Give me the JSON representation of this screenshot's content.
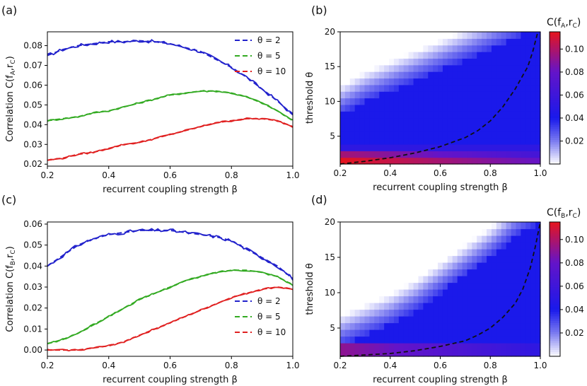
{
  "chart_data": [
    {
      "panel_label": "(a)",
      "type": "line",
      "xlabel": "recurrent coupling strength β",
      "ylabel": "Correlation C(f",
      "ylabel_sub1": "A",
      "ylabel_sub2": "C",
      "xlim": [
        0.2,
        1.0
      ],
      "ylim": [
        0.019,
        0.087
      ],
      "xticks": [
        "0.2",
        "0.4",
        "0.6",
        "0.8",
        "1.0"
      ],
      "yticks": [
        "0.02",
        "0.03",
        "0.04",
        "0.05",
        "0.06",
        "0.07",
        "0.08"
      ],
      "legend_position": "top-right",
      "x": [
        0.2,
        0.25,
        0.3,
        0.35,
        0.4,
        0.45,
        0.5,
        0.55,
        0.6,
        0.65,
        0.7,
        0.75,
        0.8,
        0.85,
        0.9,
        0.95,
        1.0
      ],
      "series": [
        {
          "name": "θ = 2",
          "color": "#2222cc",
          "values": [
            0.075,
            0.078,
            0.08,
            0.081,
            0.082,
            0.082,
            0.0825,
            0.082,
            0.081,
            0.079,
            0.077,
            0.073,
            0.069,
            0.064,
            0.058,
            0.052,
            0.045
          ]
        },
        {
          "name": "θ = 5",
          "color": "#33aa22",
          "values": [
            0.042,
            0.043,
            0.044,
            0.046,
            0.047,
            0.049,
            0.051,
            0.053,
            0.055,
            0.056,
            0.057,
            0.057,
            0.056,
            0.054,
            0.051,
            0.047,
            0.042
          ]
        },
        {
          "name": "θ = 10",
          "color": "#e02020",
          "values": [
            0.022,
            0.023,
            0.025,
            0.026,
            0.028,
            0.03,
            0.031,
            0.033,
            0.035,
            0.037,
            0.039,
            0.041,
            0.042,
            0.043,
            0.043,
            0.042,
            0.039
          ]
        }
      ]
    },
    {
      "panel_label": "(b)",
      "type": "heatmap",
      "xlabel": "recurrent coupling strength β",
      "ylabel": "threshold θ",
      "xlim": [
        0.2,
        1.0
      ],
      "ylim": [
        1,
        20
      ],
      "xticks": [
        "0.2",
        "0.4",
        "0.6",
        "0.8",
        "1.0"
      ],
      "yticks": [
        "5",
        "10",
        "15",
        "20"
      ],
      "colorbar_label": "C(f",
      "colorbar_sub1": "A",
      "colorbar_sub2": "C",
      "colorbar_ticks": [
        "0.02",
        "0.04",
        "0.06",
        "0.08",
        "0.10"
      ],
      "colorbar_range": [
        0.0,
        0.115
      ],
      "white_boundary_theta": {
        "beta": [
          0.2,
          0.3,
          0.4,
          0.5,
          0.6,
          0.7,
          0.8,
          0.9,
          0.95,
          1.0
        ],
        "theta": [
          8,
          10,
          11.5,
          13,
          14.5,
          16,
          17.5,
          19,
          20,
          20
        ]
      },
      "dashed_line": {
        "beta": [
          0.2,
          0.3,
          0.4,
          0.5,
          0.6,
          0.7,
          0.75,
          0.8,
          0.85,
          0.9,
          0.95,
          0.97,
          0.99
        ],
        "theta": [
          1,
          1.4,
          1.9,
          2.6,
          3.5,
          4.8,
          5.8,
          7.2,
          9.2,
          11.8,
          15,
          17.2,
          20
        ]
      }
    },
    {
      "panel_label": "(c)",
      "type": "line",
      "xlabel": "recurrent coupling strength β",
      "ylabel": "Correlation C(f",
      "ylabel_sub1": "B",
      "ylabel_sub2": "C",
      "xlim": [
        0.2,
        1.0
      ],
      "ylim": [
        -0.003,
        0.061
      ],
      "xticks": [
        "0.2",
        "0.4",
        "0.6",
        "0.8",
        "1.0"
      ],
      "yticks": [
        "0.00",
        "0.01",
        "0.02",
        "0.03",
        "0.04",
        "0.05",
        "0.06"
      ],
      "legend_position": "bottom-right",
      "x": [
        0.2,
        0.25,
        0.3,
        0.35,
        0.4,
        0.45,
        0.5,
        0.55,
        0.6,
        0.65,
        0.7,
        0.75,
        0.8,
        0.85,
        0.9,
        0.95,
        1.0
      ],
      "series": [
        {
          "name": "θ = 2",
          "color": "#2222cc",
          "values": [
            0.04,
            0.045,
            0.05,
            0.053,
            0.055,
            0.056,
            0.057,
            0.057,
            0.057,
            0.056,
            0.055,
            0.054,
            0.052,
            0.048,
            0.044,
            0.04,
            0.034
          ]
        },
        {
          "name": "θ = 5",
          "color": "#33aa22",
          "values": [
            0.003,
            0.005,
            0.008,
            0.012,
            0.016,
            0.02,
            0.024,
            0.027,
            0.03,
            0.033,
            0.035,
            0.037,
            0.038,
            0.038,
            0.037,
            0.035,
            0.031
          ]
        },
        {
          "name": "θ = 10",
          "color": "#e02020",
          "values": [
            0.0,
            0.0,
            0.0,
            0.001,
            0.002,
            0.004,
            0.007,
            0.01,
            0.013,
            0.016,
            0.019,
            0.022,
            0.025,
            0.027,
            0.029,
            0.03,
            0.029
          ]
        }
      ]
    },
    {
      "panel_label": "(d)",
      "type": "heatmap",
      "xlabel": "recurrent coupling strength β",
      "ylabel": "threshold θ",
      "xlim": [
        0.2,
        1.0
      ],
      "ylim": [
        1,
        20
      ],
      "xticks": [
        "0.2",
        "0.4",
        "0.6",
        "0.8",
        "1.0"
      ],
      "yticks": [
        "5",
        "10",
        "15",
        "20"
      ],
      "colorbar_label": "C(f",
      "colorbar_sub1": "B",
      "colorbar_sub2": "C",
      "colorbar_ticks": [
        "0.02",
        "0.04",
        "0.06",
        "0.08",
        "0.10"
      ],
      "colorbar_range": [
        0.0,
        0.115
      ],
      "white_boundary_theta": {
        "beta": [
          0.2,
          0.3,
          0.4,
          0.5,
          0.6,
          0.7,
          0.8,
          0.9,
          1.0
        ],
        "theta": [
          2.5,
          4,
          5.5,
          7.5,
          10,
          12.5,
          15,
          18,
          20
        ]
      },
      "dashed_line": {
        "beta": [
          0.2,
          0.3,
          0.4,
          0.5,
          0.6,
          0.7,
          0.75,
          0.8,
          0.85,
          0.9,
          0.93,
          0.96,
          0.98,
          1.0
        ],
        "theta": [
          1,
          1.2,
          1.4,
          1.8,
          2.4,
          3.2,
          4,
          5,
          6.5,
          8.5,
          10.5,
          13.5,
          16.5,
          20
        ]
      }
    }
  ]
}
